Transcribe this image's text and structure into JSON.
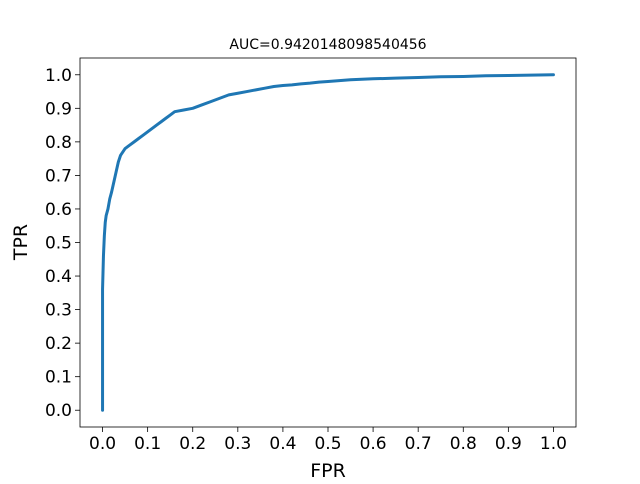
{
  "chart_data": {
    "type": "line",
    "title": "AUC=0.9420148098540456",
    "xlabel": "FPR",
    "ylabel": "TPR",
    "xlim": [
      -0.05,
      1.05
    ],
    "ylim": [
      -0.05,
      1.05
    ],
    "grid": false,
    "legend": "none",
    "xticks": [
      0.0,
      0.1,
      0.2,
      0.3,
      0.4,
      0.5,
      0.6,
      0.7,
      0.8,
      0.9,
      1.0
    ],
    "xtick_labels": [
      "0.0",
      "0.1",
      "0.2",
      "0.3",
      "0.4",
      "0.5",
      "0.6",
      "0.7",
      "0.8",
      "0.9",
      "1.0"
    ],
    "yticks": [
      0.0,
      0.1,
      0.2,
      0.3,
      0.4,
      0.5,
      0.6,
      0.7,
      0.8,
      0.9,
      1.0
    ],
    "ytick_labels": [
      "0.0",
      "0.1",
      "0.2",
      "0.3",
      "0.4",
      "0.5",
      "0.6",
      "0.7",
      "0.8",
      "0.9",
      "1.0"
    ],
    "series": [
      {
        "color": "#1f77b4",
        "x": [
          0.0,
          0.0,
          0.002,
          0.004,
          0.006,
          0.008,
          0.012,
          0.016,
          0.02,
          0.025,
          0.03,
          0.035,
          0.04,
          0.05,
          0.06,
          0.07,
          0.08,
          0.09,
          0.1,
          0.11,
          0.12,
          0.13,
          0.14,
          0.15,
          0.16,
          0.18,
          0.2,
          0.22,
          0.24,
          0.26,
          0.28,
          0.3,
          0.32,
          0.34,
          0.36,
          0.38,
          0.4,
          0.42,
          0.44,
          0.46,
          0.48,
          0.5,
          0.55,
          0.6,
          0.65,
          0.7,
          0.75,
          0.8,
          0.85,
          0.9,
          0.95,
          1.0
        ],
        "y": [
          0.0,
          0.36,
          0.46,
          0.52,
          0.56,
          0.58,
          0.6,
          0.63,
          0.65,
          0.68,
          0.71,
          0.74,
          0.76,
          0.78,
          0.79,
          0.8,
          0.81,
          0.82,
          0.83,
          0.84,
          0.85,
          0.86,
          0.87,
          0.88,
          0.89,
          0.895,
          0.9,
          0.91,
          0.92,
          0.93,
          0.94,
          0.945,
          0.95,
          0.955,
          0.96,
          0.965,
          0.968,
          0.97,
          0.973,
          0.975,
          0.978,
          0.98,
          0.985,
          0.988,
          0.99,
          0.992,
          0.994,
          0.995,
          0.997,
          0.998,
          0.999,
          1.0
        ]
      }
    ]
  }
}
